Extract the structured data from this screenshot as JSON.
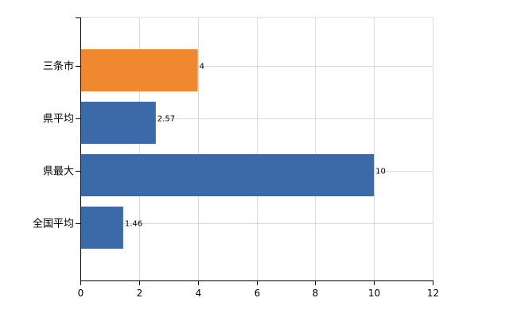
{
  "chart_data": {
    "type": "bar",
    "orientation": "horizontal",
    "categories": [
      "三条市",
      "県平均",
      "県最大",
      "全国平均"
    ],
    "values": [
      4,
      2.57,
      10,
      1.46
    ],
    "data_labels": [
      "4",
      "2.57",
      "10",
      "1.46"
    ],
    "bar_colors": [
      "#f0882f",
      "#3c6aa8",
      "#3c6aa8",
      "#3c6aa8"
    ],
    "xlim": [
      0,
      12
    ],
    "xticks": [
      "0",
      "2",
      "4",
      "6",
      "8",
      "10",
      "12"
    ],
    "grid": true,
    "title": "",
    "xlabel": "",
    "ylabel": ""
  }
}
